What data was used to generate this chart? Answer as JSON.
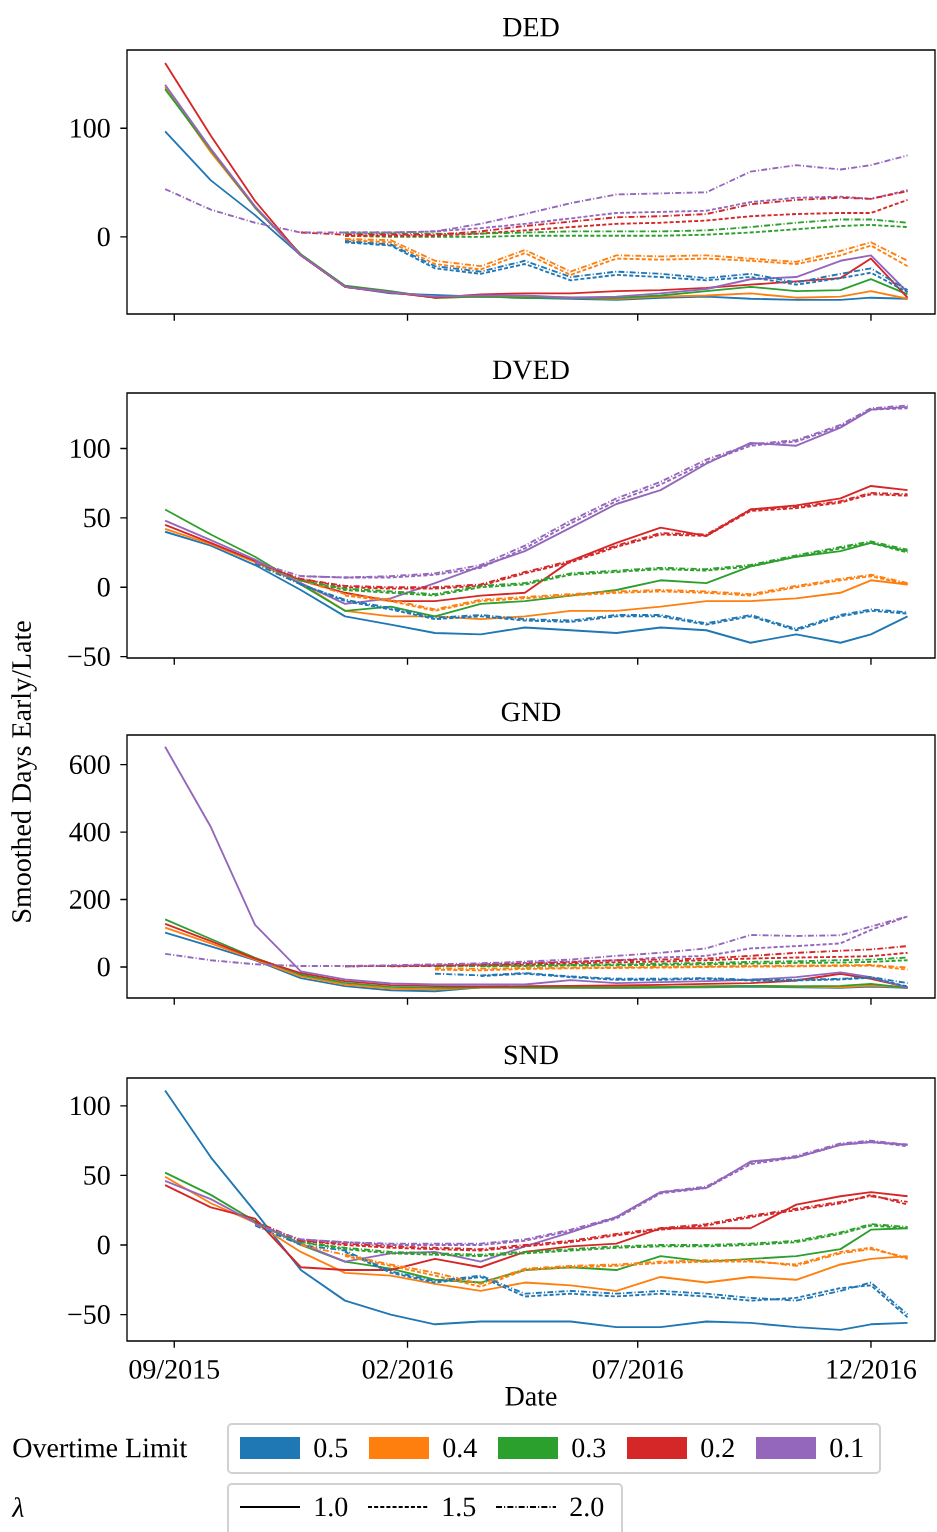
{
  "chart_data": [
    {
      "type": "line",
      "title": "DED",
      "tick_labels": "y",
      "x": [
        "2015-08-26",
        "2015-09-25",
        "2015-10-24",
        "2015-11-23",
        "2015-12-22",
        "2016-01-21",
        "2016-02-19",
        "2016-03-20",
        "2016-04-18",
        "2016-05-18",
        "2016-06-17",
        "2016-07-16",
        "2016-08-15",
        "2016-09-13",
        "2016-10-13",
        "2016-11-11",
        "2016-12-01",
        "2016-12-25"
      ],
      "xlim": [
        "2015-08-01",
        "2017-01-12"
      ],
      "xticks": [
        {
          "value": "2015-09-01",
          "label": null
        },
        {
          "value": "2016-02-01",
          "label": null
        },
        {
          "value": "2016-07-01",
          "label": null
        },
        {
          "value": "2016-12-01",
          "label": null
        }
      ],
      "ylim": [
        -71,
        172
      ],
      "yticks": [
        0,
        100
      ],
      "series": [
        {
          "color": "#1f77b4",
          "line_style": "solid",
          "values": [
            97,
            52,
            20,
            -17,
            -46,
            -52,
            null,
            -55,
            -56,
            -57,
            -58,
            -56,
            -55,
            -57,
            -58,
            -58,
            -56,
            -57
          ]
        },
        {
          "color": "#ff7f0e",
          "line_style": "solid",
          "values": [
            138,
            78,
            27,
            -17,
            -46,
            -51,
            -56,
            -55,
            -55,
            -56,
            -57,
            -55,
            -54,
            -52,
            -56,
            -55,
            -50,
            -57
          ]
        },
        {
          "color": "#2ca02c",
          "line_style": "solid",
          "values": [
            136,
            80,
            27,
            -16,
            -45,
            -50,
            -56,
            -55,
            -56,
            -56,
            -56,
            -54,
            -50,
            -46,
            -50,
            -49,
            -39,
            -53
          ]
        },
        {
          "color": "#d62728",
          "line_style": "solid",
          "values": [
            160,
            93,
            33,
            -17,
            -46,
            -51,
            -56,
            -53,
            -52,
            -52,
            -50,
            -49,
            -47,
            -44,
            -41,
            -38,
            -20,
            -56
          ]
        },
        {
          "color": "#9467bd",
          "line_style": "solid",
          "values": [
            140,
            81,
            28,
            -17,
            -46,
            -51,
            -55,
            -54,
            -54,
            -56,
            -55,
            -52,
            -48,
            -39,
            -37,
            -22,
            -17,
            -51
          ]
        },
        {
          "color": "#1f77b4",
          "line_style": "dashed",
          "values": [
            null,
            null,
            null,
            null,
            -5,
            -8,
            -29,
            -34,
            -25,
            -40,
            -35,
            -37,
            -40,
            -37,
            -44,
            -38,
            -33,
            -51
          ]
        },
        {
          "color": "#ff7f0e",
          "line_style": "dashed",
          "values": [
            null,
            null,
            null,
            null,
            -3,
            -5,
            -25,
            -30,
            -15,
            -35,
            -20,
            -21,
            -20,
            -22,
            -25,
            -17,
            -8,
            -27
          ]
        },
        {
          "color": "#2ca02c",
          "line_style": "dashed",
          "values": [
            null,
            null,
            null,
            null,
            1,
            0,
            0,
            0,
            1,
            1,
            1,
            1,
            2,
            4,
            7,
            10,
            11,
            9
          ]
        },
        {
          "color": "#d62728",
          "line_style": "dashed",
          "values": [
            null,
            null,
            null,
            null,
            1,
            1,
            1,
            3,
            6,
            9,
            12,
            13,
            15,
            19,
            21,
            22,
            22,
            34
          ]
        },
        {
          "color": "#9467bd",
          "line_style": "dashed",
          "values": [
            null,
            null,
            null,
            null,
            4,
            4,
            5,
            8,
            12,
            17,
            22,
            23,
            24,
            32,
            36,
            37,
            35,
            43
          ]
        },
        {
          "color": "#1f77b4",
          "line_style": "dashdot",
          "values": [
            null,
            null,
            null,
            null,
            -4,
            -7,
            -27,
            -32,
            -22,
            -37,
            -32,
            -34,
            -38,
            -34,
            -42,
            -34,
            -29,
            -49
          ]
        },
        {
          "color": "#ff7f0e",
          "line_style": "dashdot",
          "values": [
            null,
            null,
            null,
            null,
            -2,
            -3,
            -22,
            -27,
            -12,
            -32,
            -17,
            -18,
            -17,
            -20,
            -23,
            -13,
            -5,
            -22
          ]
        },
        {
          "color": "#2ca02c",
          "line_style": "dashdot",
          "values": [
            null,
            null,
            null,
            null,
            3,
            3,
            3,
            3,
            4,
            5,
            5,
            5,
            6,
            9,
            13,
            16,
            16,
            13
          ]
        },
        {
          "color": "#d62728",
          "line_style": "dashdot",
          "values": [
            null,
            null,
            null,
            4,
            2,
            2,
            2,
            5,
            10,
            14,
            18,
            19,
            21,
            30,
            34,
            36,
            35,
            42
          ]
        },
        {
          "color": "#9467bd",
          "line_style": "dashdot",
          "values": [
            44,
            25,
            13,
            4,
            4,
            4,
            5,
            12,
            21,
            31,
            39,
            40,
            41,
            60,
            66,
            62,
            66,
            75
          ]
        }
      ]
    },
    {
      "type": "line",
      "title": "DVED",
      "tick_labels": "y",
      "x": [
        "2015-08-26",
        "2015-09-25",
        "2015-10-24",
        "2015-11-23",
        "2015-12-22",
        "2016-01-21",
        "2016-02-19",
        "2016-03-20",
        "2016-04-18",
        "2016-05-18",
        "2016-06-17",
        "2016-07-16",
        "2016-08-15",
        "2016-09-13",
        "2016-10-13",
        "2016-11-11",
        "2016-12-01",
        "2016-12-25"
      ],
      "xlim": [
        "2015-08-01",
        "2017-01-12"
      ],
      "xticks": [
        {
          "value": "2015-09-01",
          "label": null
        },
        {
          "value": "2016-02-01",
          "label": null
        },
        {
          "value": "2016-07-01",
          "label": null
        },
        {
          "value": "2016-12-01",
          "label": null
        }
      ],
      "ylim": [
        -51,
        140
      ],
      "yticks": [
        {
          "value": -50,
          "label": "−50"
        },
        0,
        50,
        100
      ],
      "series": [
        {
          "color": "#1f77b4",
          "line_style": "solid",
          "values": [
            40,
            30,
            16,
            -2,
            -21,
            -27,
            -33,
            -34,
            -29,
            -31,
            -33,
            -29,
            -31,
            -40,
            -34,
            -40,
            -34,
            -21
          ]
        },
        {
          "color": "#ff7f0e",
          "line_style": "solid",
          "values": [
            42,
            31,
            18,
            3,
            -17,
            -21,
            -21,
            -23,
            -21,
            -17,
            -17,
            -14,
            -10,
            -10,
            -8,
            -4,
            5,
            2
          ]
        },
        {
          "color": "#2ca02c",
          "line_style": "solid",
          "values": [
            56,
            38,
            22,
            2,
            -17,
            -14,
            -21,
            -12,
            -10,
            -6,
            -2,
            5,
            3,
            15,
            22,
            26,
            32,
            26
          ]
        },
        {
          "color": "#d62728",
          "line_style": "solid",
          "values": [
            45,
            32,
            19,
            5,
            -4,
            -10,
            -10,
            -6,
            -4,
            19,
            32,
            43,
            37,
            56,
            59,
            64,
            73,
            70
          ]
        },
        {
          "color": "#9467bd",
          "line_style": "solid",
          "values": [
            48,
            34,
            20,
            3,
            -12,
            -8,
            3,
            15,
            26,
            43,
            60,
            70,
            89,
            104,
            102,
            115,
            128,
            130
          ]
        },
        {
          "color": "#1f77b4",
          "line_style": "dashed",
          "values": [
            null,
            null,
            null,
            2,
            -10,
            -16,
            -23,
            -21,
            -24,
            -25,
            -21,
            -21,
            -27,
            -21,
            -31,
            -21,
            -17,
            -19
          ]
        },
        {
          "color": "#ff7f0e",
          "line_style": "dashed",
          "values": [
            null,
            null,
            null,
            null,
            -6,
            -10,
            -17,
            -10,
            -8,
            -6,
            -4,
            -3,
            -4,
            -6,
            0,
            5,
            8,
            2
          ]
        },
        {
          "color": "#2ca02c",
          "line_style": "dashed",
          "values": [
            null,
            null,
            null,
            5,
            -2,
            -4,
            -6,
            0,
            2,
            9,
            11,
            13,
            12,
            15,
            22,
            28,
            32,
            25
          ]
        },
        {
          "color": "#d62728",
          "line_style": "dashed",
          "values": [
            null,
            null,
            null,
            6,
            0,
            -1,
            -1,
            1,
            10,
            18,
            29,
            38,
            37,
            55,
            57,
            61,
            67,
            66
          ]
        },
        {
          "color": "#9467bd",
          "line_style": "dashed",
          "values": [
            null,
            null,
            null,
            8,
            7,
            7,
            9,
            14,
            28,
            46,
            62,
            74,
            90,
            102,
            105,
            116,
            128,
            129
          ]
        },
        {
          "color": "#1f77b4",
          "line_style": "dashdot",
          "values": [
            null,
            null,
            17,
            2,
            -9,
            -15,
            -22,
            -20,
            -23,
            -24,
            -20,
            -20,
            -26,
            -20,
            -30,
            -20,
            -16,
            -18
          ]
        },
        {
          "color": "#ff7f0e",
          "line_style": "dashdot",
          "values": [
            null,
            null,
            18,
            5,
            -5,
            -9,
            -16,
            -9,
            -7,
            -5,
            -3,
            -2,
            -3,
            -5,
            1,
            6,
            9,
            3
          ]
        },
        {
          "color": "#2ca02c",
          "line_style": "dashdot",
          "values": [
            null,
            null,
            18,
            5,
            -1,
            -3,
            -5,
            1,
            3,
            10,
            12,
            14,
            13,
            16,
            23,
            29,
            33,
            27
          ]
        },
        {
          "color": "#d62728",
          "line_style": "dashdot",
          "values": [
            null,
            null,
            18,
            6,
            1,
            0,
            0,
            2,
            11,
            19,
            30,
            39,
            38,
            56,
            58,
            62,
            68,
            67
          ]
        },
        {
          "color": "#9467bd",
          "line_style": "dashdot",
          "values": [
            null,
            null,
            18,
            8,
            7,
            8,
            10,
            16,
            30,
            48,
            64,
            76,
            92,
            103,
            106,
            117,
            129,
            131
          ]
        }
      ]
    },
    {
      "type": "line",
      "title": "GND",
      "ylabel": "Smoothed Days Early/Late",
      "tick_labels": "y",
      "x": [
        "2015-08-26",
        "2015-09-25",
        "2015-10-24",
        "2015-11-23",
        "2015-12-22",
        "2016-01-21",
        "2016-02-19",
        "2016-03-20",
        "2016-04-18",
        "2016-05-18",
        "2016-06-17",
        "2016-07-16",
        "2016-08-15",
        "2016-09-13",
        "2016-10-13",
        "2016-11-11",
        "2016-12-01",
        "2016-12-25"
      ],
      "xlim": [
        "2015-08-01",
        "2017-01-12"
      ],
      "xticks": [
        {
          "value": "2015-09-01",
          "label": null
        },
        {
          "value": "2016-02-01",
          "label": null
        },
        {
          "value": "2016-07-01",
          "label": null
        },
        {
          "value": "2016-12-01",
          "label": null
        }
      ],
      "ylim": [
        -92,
        688
      ],
      "yticks": [
        0,
        200,
        400,
        600
      ],
      "series": [
        {
          "color": "#1f77b4",
          "line_style": "solid",
          "values": [
            102,
            61,
            20,
            -33,
            -57,
            -69,
            -72,
            -60,
            -60,
            -61,
            -62,
            -61,
            -60,
            -58,
            -60,
            -62,
            -58,
            -62
          ]
        },
        {
          "color": "#ff7f0e",
          "line_style": "solid",
          "values": [
            117,
            70,
            22,
            -28,
            -52,
            -64,
            -67,
            -60,
            -60,
            -60,
            -60,
            -59,
            -58,
            -57,
            -58,
            -60,
            -55,
            -60
          ]
        },
        {
          "color": "#2ca02c",
          "line_style": "solid",
          "values": [
            141,
            83,
            27,
            -23,
            -47,
            -59,
            -62,
            -60,
            -61,
            -61,
            -61,
            -60,
            -58,
            -56,
            -58,
            -56,
            -50,
            -62
          ]
        },
        {
          "color": "#d62728",
          "line_style": "solid",
          "values": [
            128,
            77,
            25,
            -18,
            -42,
            -54,
            -57,
            -58,
            -57,
            -56,
            -55,
            -53,
            -50,
            -48,
            -40,
            -20,
            -35,
            -60
          ]
        },
        {
          "color": "#9467bd",
          "line_style": "solid",
          "values": [
            653,
            415,
            125,
            -13,
            -37,
            -49,
            -52,
            -52,
            -52,
            -39,
            -48,
            -45,
            -42,
            -38,
            -30,
            -16,
            -30,
            -62
          ]
        },
        {
          "color": "#1f77b4",
          "line_style": "dashed",
          "values": [
            null,
            null,
            null,
            null,
            null,
            null,
            null,
            -27,
            -20,
            -30,
            -38,
            -38,
            -35,
            -40,
            -40,
            -37,
            -32,
            -58
          ]
        },
        {
          "color": "#ff7f0e",
          "line_style": "dashed",
          "values": [
            null,
            null,
            null,
            null,
            null,
            null,
            -8,
            -10,
            -6,
            -4,
            -3,
            -2,
            0,
            1,
            2,
            3,
            4,
            -8
          ]
        },
        {
          "color": "#2ca02c",
          "line_style": "dashed",
          "values": [
            null,
            null,
            null,
            null,
            null,
            null,
            null,
            2,
            3,
            4,
            5,
            6,
            8,
            10,
            12,
            13,
            15,
            20
          ]
        },
        {
          "color": "#d62728",
          "line_style": "dashed",
          "values": [
            null,
            null,
            null,
            null,
            null,
            2,
            3,
            5,
            7,
            10,
            14,
            16,
            20,
            25,
            28,
            30,
            32,
            42
          ]
        },
        {
          "color": "#9467bd",
          "line_style": "dashed",
          "values": [
            null,
            null,
            null,
            null,
            2,
            3,
            5,
            8,
            12,
            16,
            20,
            28,
            33,
            55,
            62,
            70,
            110,
            150
          ]
        },
        {
          "color": "#1f77b4",
          "line_style": "dashdot",
          "values": [
            null,
            null,
            null,
            null,
            null,
            null,
            -20,
            -25,
            -18,
            -28,
            -35,
            -35,
            -33,
            -38,
            -38,
            -35,
            -30,
            -48
          ]
        },
        {
          "color": "#ff7f0e",
          "line_style": "dashdot",
          "values": [
            null,
            null,
            null,
            null,
            null,
            null,
            -4,
            -5,
            -3,
            -2,
            -1,
            0,
            2,
            3,
            4,
            5,
            6,
            -2
          ]
        },
        {
          "color": "#2ca02c",
          "line_style": "dashdot",
          "values": [
            null,
            null,
            null,
            null,
            null,
            null,
            2,
            3,
            4,
            6,
            8,
            10,
            12,
            15,
            17,
            20,
            22,
            28
          ]
        },
        {
          "color": "#d62728",
          "line_style": "dashdot",
          "values": [
            null,
            null,
            null,
            null,
            2,
            3,
            4,
            7,
            10,
            14,
            20,
            22,
            25,
            33,
            42,
            48,
            52,
            62
          ]
        },
        {
          "color": "#9467bd",
          "line_style": "dashdot",
          "values": [
            39,
            20,
            8,
            3,
            3,
            5,
            8,
            11,
            16,
            22,
            33,
            42,
            55,
            95,
            92,
            94,
            120,
            150
          ]
        }
      ]
    },
    {
      "type": "line",
      "title": "SND",
      "xlabel": "Date",
      "x": [
        "2015-08-26",
        "2015-09-25",
        "2015-10-24",
        "2015-11-23",
        "2015-12-22",
        "2016-01-21",
        "2016-02-19",
        "2016-03-20",
        "2016-04-18",
        "2016-05-18",
        "2016-06-17",
        "2016-07-16",
        "2016-08-15",
        "2016-09-13",
        "2016-10-13",
        "2016-11-11",
        "2016-12-01",
        "2016-12-25"
      ],
      "xlim": [
        "2015-08-01",
        "2017-01-12"
      ],
      "xticks": [
        {
          "value": "2015-09-01",
          "label": "09/2015"
        },
        {
          "value": "2016-02-01",
          "label": "02/2016"
        },
        {
          "value": "2016-07-01",
          "label": "07/2016"
        },
        {
          "value": "2016-12-01",
          "label": "12/2016"
        }
      ],
      "ylim": [
        -69,
        120
      ],
      "yticks": [
        {
          "value": -50,
          "label": "−50"
        },
        0,
        50,
        100
      ],
      "annotations": [
        "Overtime Limit",
        "0.5",
        "0.4",
        "0.3",
        "0.2",
        "0.1",
        "λ",
        "1.0",
        "1.5",
        "2.0"
      ],
      "series": [
        {
          "color": "#1f77b4",
          "line_style": "solid",
          "values": [
            111,
            63,
            24,
            -18,
            -40,
            -50,
            -57,
            -55,
            -55,
            -55,
            -59,
            -59,
            -55,
            -56,
            -59,
            -61,
            -57,
            -56
          ]
        },
        {
          "color": "#ff7f0e",
          "line_style": "solid",
          "values": [
            49,
            30,
            16,
            -5,
            -20,
            -22,
            -28,
            -33,
            -27,
            -29,
            -33,
            -23,
            -27,
            -23,
            -25,
            -14,
            -10,
            -8
          ]
        },
        {
          "color": "#2ca02c",
          "line_style": "solid",
          "values": [
            52,
            36,
            17,
            0,
            -12,
            -17,
            -25,
            -27,
            -18,
            -16,
            -18,
            -8,
            -12,
            -10,
            -8,
            -3,
            11,
            12
          ]
        },
        {
          "color": "#d62728",
          "line_style": "solid",
          "values": [
            43,
            27,
            19,
            -16,
            -18,
            -18,
            -10,
            -16,
            -5,
            -1,
            1,
            12,
            12,
            12,
            29,
            35,
            38,
            35
          ]
        },
        {
          "color": "#9467bd",
          "line_style": "solid",
          "values": [
            46,
            33,
            16,
            1,
            -12,
            -6,
            -5,
            -12,
            -1,
            9,
            20,
            38,
            41,
            60,
            63,
            72,
            74,
            72
          ]
        },
        {
          "color": "#1f77b4",
          "line_style": "dashed",
          "values": [
            null,
            null,
            null,
            null,
            -5,
            -20,
            -27,
            -23,
            -37,
            -35,
            -37,
            -35,
            -37,
            -40,
            -38,
            -31,
            -29,
            -52
          ]
        },
        {
          "color": "#ff7f0e",
          "line_style": "dashed",
          "values": [
            null,
            null,
            null,
            null,
            -8,
            -15,
            -22,
            -30,
            -18,
            -16,
            -15,
            -13,
            -12,
            -12,
            -14,
            -5,
            -2,
            -10
          ]
        },
        {
          "color": "#2ca02c",
          "line_style": "dashed",
          "values": [
            null,
            null,
            null,
            2,
            -3,
            -6,
            -7,
            -8,
            -6,
            -4,
            -2,
            -1,
            -1,
            0,
            2,
            8,
            14,
            12
          ]
        },
        {
          "color": "#d62728",
          "line_style": "dashed",
          "values": [
            null,
            null,
            null,
            3,
            0,
            -2,
            -3,
            -4,
            -1,
            2,
            7,
            11,
            14,
            20,
            25,
            30,
            36,
            29
          ]
        },
        {
          "color": "#9467bd",
          "line_style": "dashed",
          "values": [
            null,
            null,
            null,
            4,
            2,
            0,
            0,
            0,
            3,
            10,
            19,
            37,
            41,
            58,
            63,
            72,
            74,
            71
          ]
        },
        {
          "color": "#1f77b4",
          "line_style": "dashdot",
          "values": [
            null,
            null,
            14,
            0,
            -4,
            -19,
            -26,
            -22,
            -35,
            -33,
            -35,
            -33,
            -35,
            -38,
            -40,
            -33,
            -27,
            -50
          ]
        },
        {
          "color": "#ff7f0e",
          "line_style": "dashdot",
          "values": [
            null,
            null,
            null,
            0,
            -7,
            -14,
            -20,
            -28,
            -17,
            -15,
            -14,
            -12,
            -11,
            -11,
            -15,
            -6,
            -3,
            -9
          ]
        },
        {
          "color": "#2ca02c",
          "line_style": "dashdot",
          "values": [
            null,
            null,
            16,
            2,
            -2,
            -5,
            -6,
            -7,
            -5,
            -3,
            -1,
            0,
            0,
            1,
            3,
            9,
            15,
            13
          ]
        },
        {
          "color": "#d62728",
          "line_style": "dashdot",
          "values": [
            null,
            null,
            17,
            3,
            1,
            -1,
            -2,
            -3,
            0,
            3,
            8,
            12,
            15,
            21,
            26,
            31,
            35,
            31
          ]
        },
        {
          "color": "#9467bd",
          "line_style": "dashdot",
          "values": [
            null,
            null,
            15,
            4,
            2,
            1,
            1,
            1,
            4,
            11,
            20,
            38,
            42,
            59,
            64,
            73,
            75,
            72
          ]
        }
      ]
    }
  ]
}
